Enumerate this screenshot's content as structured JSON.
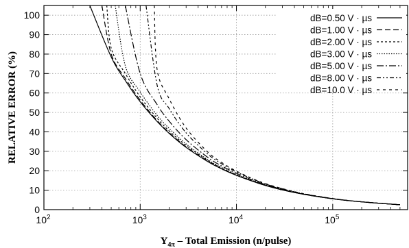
{
  "chart_data": {
    "type": "line",
    "xlabel": "Y",
    "xlabel_sub": "4π",
    "xlabel_rest": " – Total Emission (n/pulse)",
    "ylabel": "RELATIVE ERROR (%)",
    "xscale": "log",
    "xlim": [
      100,
      600000
    ],
    "ylim": [
      0,
      105
    ],
    "grid": true,
    "legend_position": "top-right",
    "x_ticks": [
      {
        "base": "10",
        "exp": "2",
        "value": 100
      },
      {
        "base": "10",
        "exp": "3",
        "value": 1000
      },
      {
        "base": "10",
        "exp": "4",
        "value": 10000
      },
      {
        "base": "10",
        "exp": "5",
        "value": 100000
      }
    ],
    "y_ticks": [
      "0",
      "10",
      "20",
      "30",
      "40",
      "50",
      "60",
      "70",
      "80",
      "90",
      "100"
    ],
    "x": [
      200,
      300,
      500,
      700,
      1000,
      1500,
      2000,
      3000,
      5000,
      7000,
      10000,
      15000,
      20000,
      30000,
      50000,
      100000,
      200000,
      500000
    ],
    "series": [
      {
        "name": "dB=0.50 V · µs",
        "dash": "",
        "values": [
          null,
          100,
          78.5,
          66.4,
          55.5,
          45.3,
          39.2,
          32.0,
          24.8,
          21.0,
          17.6,
          14.4,
          12.4,
          10.1,
          7.9,
          5.6,
          4.0,
          2.5
        ]
      },
      {
        "name": "dB=1.00 V · µs",
        "dash": "8,4",
        "values": [
          null,
          null,
          80,
          67.5,
          56.3,
          45.8,
          39.6,
          32.3,
          25.0,
          21.1,
          17.7,
          14.5,
          12.5,
          10.2,
          7.9,
          5.6,
          4.0,
          2.5
        ]
      },
      {
        "name": "dB=2.00 V · µs",
        "dash": "3,3",
        "values": [
          null,
          null,
          83,
          70,
          58,
          47,
          40.5,
          33,
          25.4,
          21.4,
          17.9,
          14.6,
          12.6,
          10.3,
          7.95,
          5.6,
          4.0,
          2.5
        ]
      },
      {
        "name": "dB=3.00 V · µs",
        "dash": "1.5,2",
        "values": [
          null,
          null,
          100,
          74,
          60.5,
          48.5,
          41.8,
          33.8,
          25.8,
          21.7,
          18.1,
          14.8,
          12.7,
          10.35,
          8.0,
          5.6,
          4.0,
          2.5
        ]
      },
      {
        "name": "dB=5.00 V · µs",
        "dash": "10,3,2,3",
        "values": [
          null,
          null,
          null,
          100,
          70,
          54,
          45.5,
          36,
          27,
          22.5,
          18.7,
          15.1,
          12.9,
          10.5,
          8.05,
          5.65,
          4.0,
          2.5
        ]
      },
      {
        "name": "dB=8.00 V · µs",
        "dash": "6,3,2,3,2,3",
        "values": [
          null,
          null,
          null,
          null,
          100,
          64,
          52,
          39.5,
          28.7,
          23.6,
          19.4,
          15.6,
          13.2,
          10.7,
          8.15,
          5.7,
          4.0,
          2.5
        ]
      },
      {
        "name": "dB=10.0 V · µs",
        "dash": "4,5",
        "values": [
          null,
          null,
          null,
          null,
          null,
          72,
          57,
          42,
          29.8,
          24.3,
          19.8,
          15.8,
          13.4,
          10.8,
          8.2,
          5.7,
          4.0,
          2.5
        ]
      }
    ],
    "x_start": [
      300,
      400,
      450,
      550,
      700,
      1150,
      1400
    ]
  }
}
